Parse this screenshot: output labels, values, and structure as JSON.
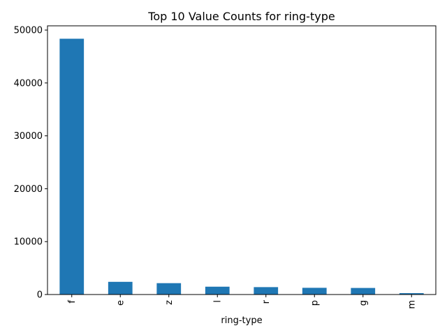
{
  "chart_data": {
    "type": "bar",
    "title": "Top 10 Value Counts for ring-type",
    "xlabel": "ring-type",
    "ylabel": "",
    "categories": [
      "f",
      "e",
      "z",
      "l",
      "r",
      "p",
      "g",
      "m"
    ],
    "values": [
      48360,
      2400,
      2150,
      1480,
      1400,
      1270,
      1240,
      260
    ],
    "ylim": [
      0,
      50800
    ],
    "yticks": [
      0,
      10000,
      20000,
      30000,
      40000,
      50000
    ],
    "ytick_labels": [
      "0",
      "10000",
      "20000",
      "30000",
      "40000",
      "50000"
    ],
    "bar_color": "#1f77b4",
    "grid": false,
    "legend": "none"
  }
}
